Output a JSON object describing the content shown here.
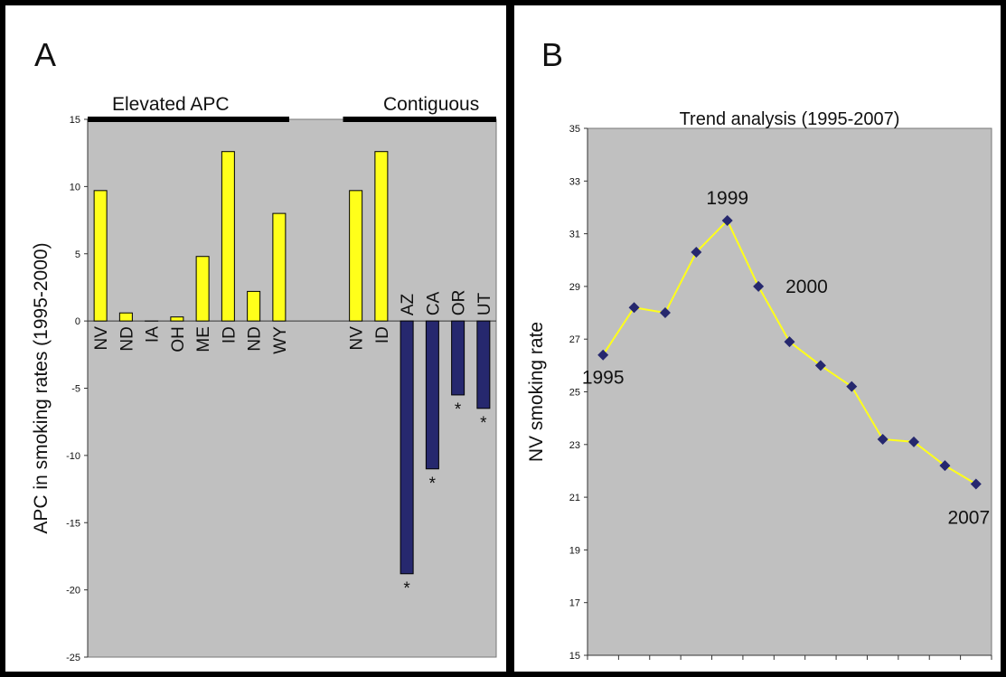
{
  "chart_data": [
    {
      "type": "bar",
      "panel_label": "A",
      "ylabel": "APC in smoking rates (1995-2000)",
      "ylim": [
        -25,
        15
      ],
      "yticks": [
        15,
        10,
        5,
        0,
        -5,
        -10,
        -15,
        -20,
        -25
      ],
      "groups": [
        {
          "label": "Elevated APC",
          "categories": [
            "NV",
            "ND",
            "IA",
            "OH",
            "ME",
            "ID",
            "ND",
            "WY"
          ],
          "values": [
            9.7,
            0.6,
            0.0,
            0.3,
            4.8,
            12.6,
            2.2,
            8.0
          ],
          "significant": [
            false,
            false,
            false,
            false,
            false,
            false,
            false,
            false
          ]
        },
        {
          "label": "Contiguous",
          "categories": [
            "NV",
            "ID",
            "AZ",
            "CA",
            "OR",
            "UT"
          ],
          "values": [
            9.7,
            12.6,
            -18.8,
            -11.0,
            -5.5,
            -6.5
          ],
          "significant": [
            false,
            false,
            true,
            true,
            true,
            true
          ]
        }
      ],
      "significance_marker": "*",
      "colors": {
        "positive": "#ffff1a",
        "negative": "#26286e",
        "plot_bg": "#c0c0c0"
      },
      "grid": false
    },
    {
      "type": "line",
      "panel_label": "B",
      "title": "Trend analysis (1995-2007)",
      "ylabel": "NV smoking rate",
      "ylim": [
        15,
        35
      ],
      "yticks": [
        35,
        33,
        31,
        29,
        27,
        25,
        23,
        21,
        19,
        17,
        15
      ],
      "x": [
        1995,
        1996,
        1997,
        1998,
        1999,
        2000,
        2001,
        2002,
        2003,
        2004,
        2005,
        2006,
        2007
      ],
      "y": [
        26.4,
        28.2,
        28.0,
        30.3,
        31.5,
        29.0,
        26.9,
        26.0,
        25.2,
        23.2,
        23.1,
        22.2,
        21.5
      ],
      "annotations": [
        "1995",
        "1999",
        "2000",
        "2007"
      ],
      "colors": {
        "line": "#ffff1a",
        "marker": "#26286e",
        "plot_bg": "#c0c0c0"
      },
      "grid": false
    }
  ]
}
